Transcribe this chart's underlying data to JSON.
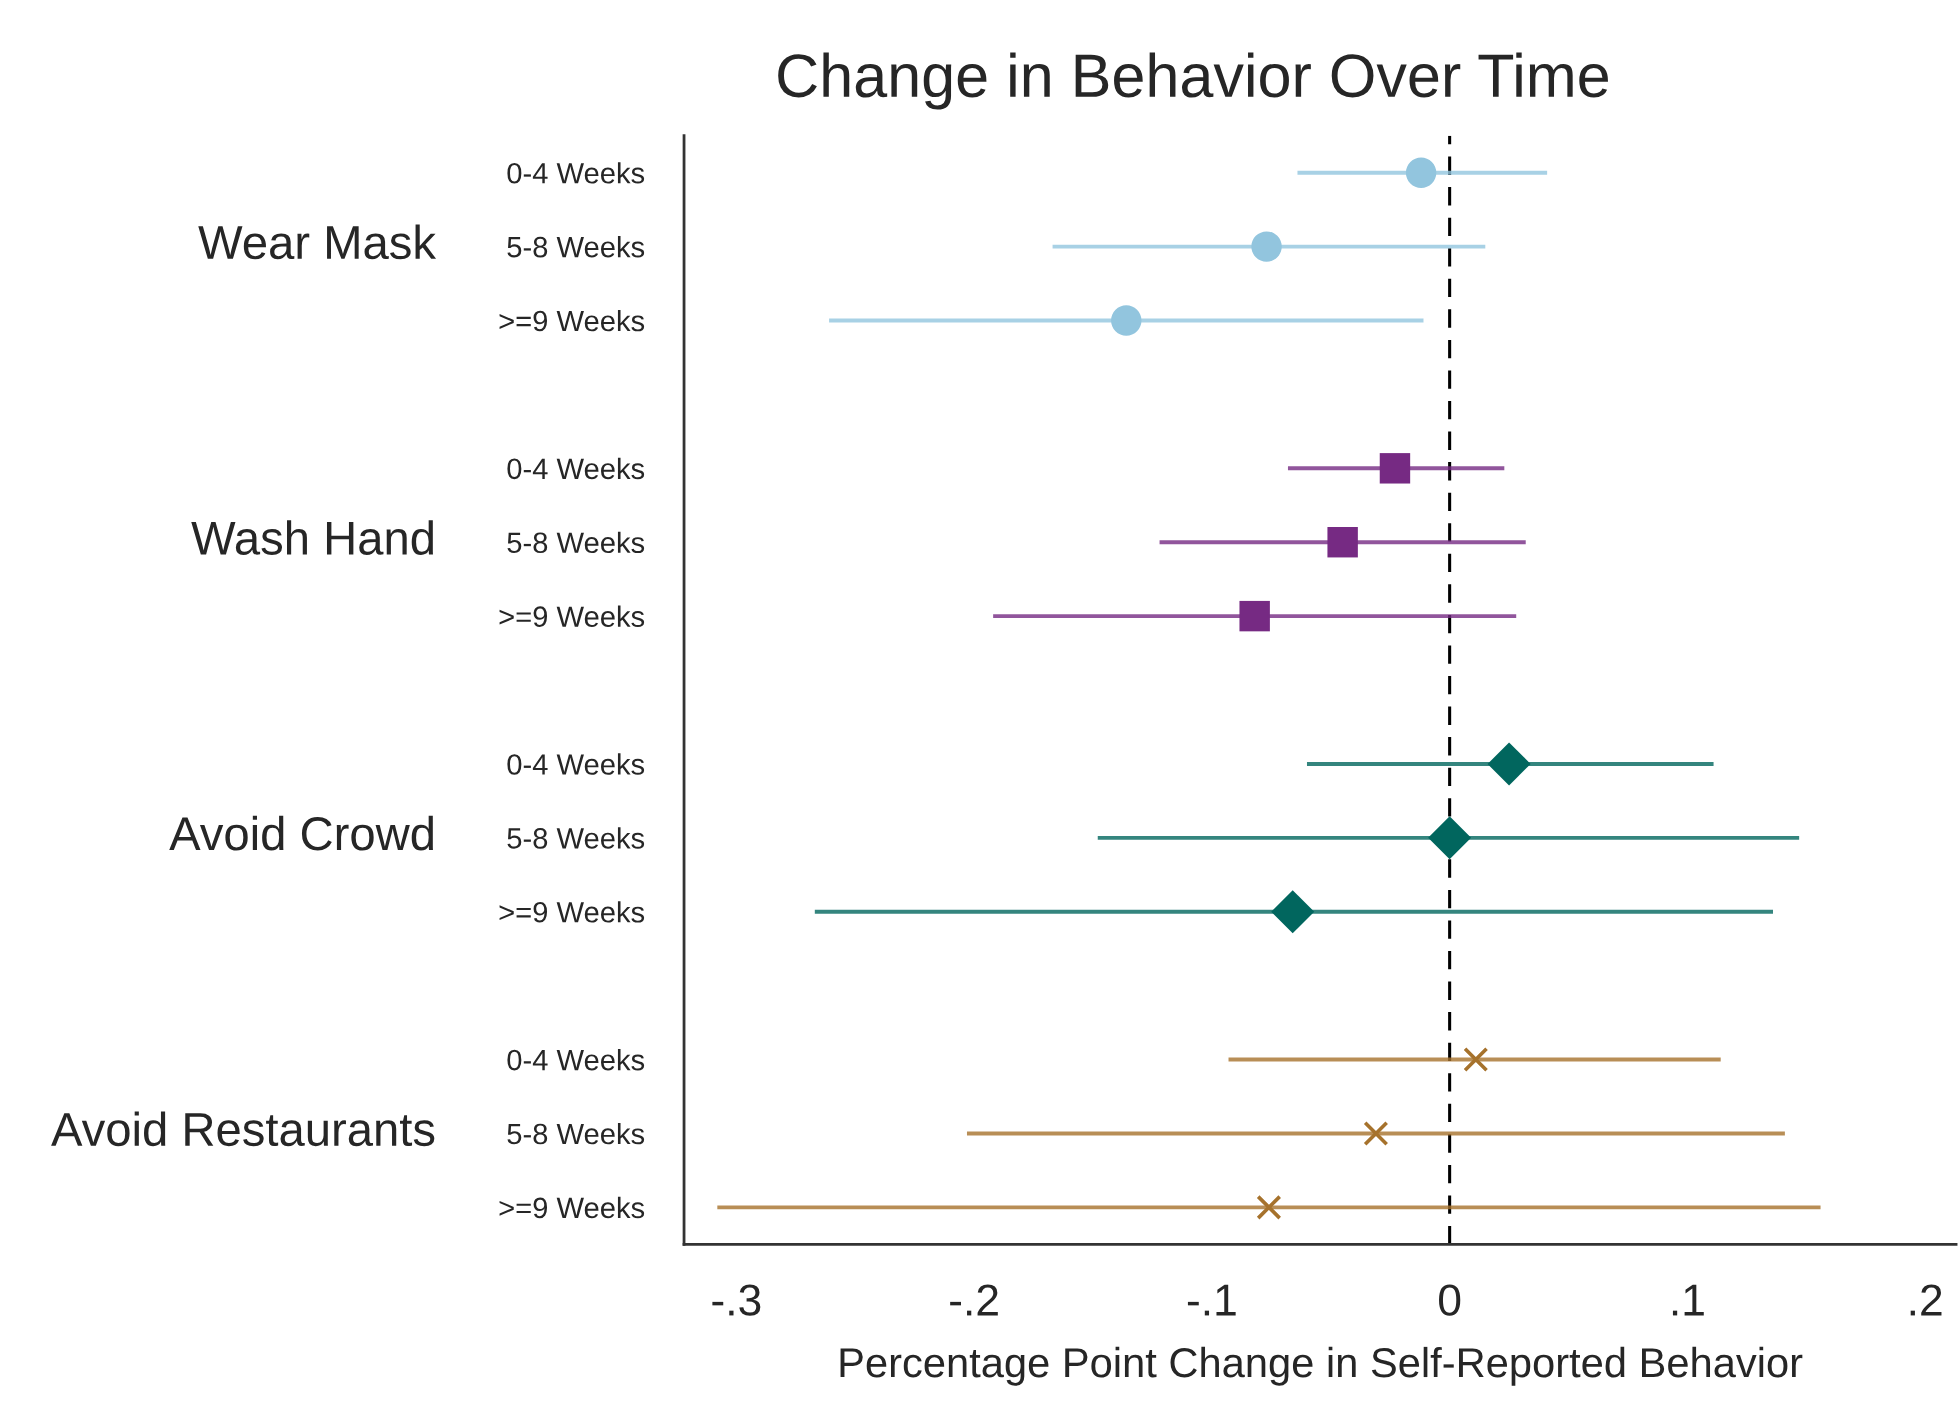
{
  "chart_data": {
    "type": "scatter",
    "orientation": "horizontal",
    "title": "Change in Behavior Over Time",
    "xlabel": "Percentage Point Change in Self-Reported Behavior",
    "annotations": [
      "Wear Mask",
      "Wash Hand",
      "Avoid Crowd",
      "Avoid Restaurants"
    ],
    "categories": [
      "0-4 Weeks",
      "5-8 Weeks",
      ">=9 Weeks",
      null,
      "0-4 Weeks",
      "5-8 Weeks",
      ">=9 Weeks",
      null,
      "0-4 Weeks",
      "5-8 Weeks",
      ">=9 Weeks",
      null,
      "0-4 Weeks",
      "5-8 Weeks",
      ">=9 Weeks"
    ],
    "series": [
      {
        "color": "#92c5de",
        "marker": "circle",
        "values": [
          -0.012,
          -0.077,
          -0.136,
          null,
          null,
          null,
          null,
          null,
          null,
          null,
          null,
          null,
          null,
          null,
          null
        ],
        "errors": [
          [
            -0.064,
            0.041
          ],
          [
            -0.167,
            0.015
          ],
          [
            -0.261,
            -0.011
          ],
          null,
          null,
          null,
          null,
          null,
          null,
          null,
          null,
          null,
          null,
          null,
          null
        ]
      },
      {
        "color": "#762a83",
        "marker": "square",
        "values": [
          null,
          null,
          null,
          null,
          -0.023,
          -0.045,
          -0.082,
          null,
          null,
          null,
          null,
          null,
          null,
          null,
          null
        ],
        "errors": [
          null,
          null,
          null,
          null,
          [
            -0.068,
            0.023
          ],
          [
            -0.122,
            0.032
          ],
          [
            -0.192,
            0.028
          ],
          null,
          null,
          null,
          null,
          null,
          null,
          null,
          null
        ]
      },
      {
        "color": "#01665e",
        "marker": "diamond",
        "values": [
          null,
          null,
          null,
          null,
          null,
          null,
          null,
          null,
          0.025,
          0.0,
          -0.066,
          null,
          null,
          null,
          null
        ],
        "errors": [
          null,
          null,
          null,
          null,
          null,
          null,
          null,
          null,
          [
            -0.06,
            0.111
          ],
          [
            -0.148,
            0.147
          ],
          [
            -0.267,
            0.136
          ],
          null,
          null,
          null,
          null
        ]
      },
      {
        "color": "#a6722c",
        "marker": "cross",
        "values": [
          null,
          null,
          null,
          null,
          null,
          null,
          null,
          null,
          null,
          null,
          null,
          null,
          0.011,
          -0.031,
          -0.076
        ],
        "errors": [
          null,
          null,
          null,
          null,
          null,
          null,
          null,
          null,
          null,
          null,
          null,
          null,
          [
            -0.093,
            0.114
          ],
          [
            -0.203,
            0.141
          ],
          [
            -0.308,
            0.156
          ]
        ]
      }
    ],
    "xlim": [
      -0.322,
      0.213
    ],
    "xticks": [
      {
        "value": -0.3,
        "label": "-.3"
      },
      {
        "value": -0.2,
        "label": "-.2"
      },
      {
        "value": -0.1,
        "label": "-.1"
      },
      0,
      {
        "value": 0.1,
        "label": ".1"
      },
      {
        "value": 0.2,
        "label": ".2"
      }
    ],
    "ref_lines": [
      {
        "axis": "x",
        "value": 0,
        "color": "#000000",
        "line_style": "dashed"
      }
    ],
    "grid": false
  }
}
